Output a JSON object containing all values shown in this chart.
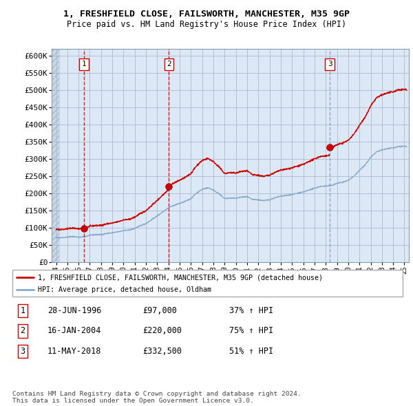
{
  "title1": "1, FRESHFIELD CLOSE, FAILSWORTH, MANCHESTER, M35 9GP",
  "title2": "Price paid vs. HM Land Registry's House Price Index (HPI)",
  "ylabel_ticks": [
    "£0",
    "£50K",
    "£100K",
    "£150K",
    "£200K",
    "£250K",
    "£300K",
    "£350K",
    "£400K",
    "£450K",
    "£500K",
    "£550K",
    "£600K"
  ],
  "ytick_values": [
    0,
    50000,
    100000,
    150000,
    200000,
    250000,
    300000,
    350000,
    400000,
    450000,
    500000,
    550000,
    600000
  ],
  "xlim_start": 1993.6,
  "xlim_end": 2025.4,
  "ylim_min": 0,
  "ylim_max": 620000,
  "sale_dates": [
    1996.49,
    2004.04,
    2018.36
  ],
  "sale_prices": [
    97000,
    220000,
    332500
  ],
  "sale_labels": [
    "1",
    "2",
    "3"
  ],
  "vline_colors": [
    "#cc0000",
    "#cc0000",
    "#8899bb"
  ],
  "vline_styles": [
    "--",
    "--",
    "--"
  ],
  "price_line_color": "#cc0000",
  "hpi_line_color": "#88aacc",
  "plot_bg_color": "#dce8f5",
  "hatch_bg_color": "#c8d8e8",
  "legend_label_price": "1, FRESHFIELD CLOSE, FAILSWORTH, MANCHESTER, M35 9GP (detached house)",
  "legend_label_hpi": "HPI: Average price, detached house, Oldham",
  "table_rows": [
    [
      "1",
      "28-JUN-1996",
      "£97,000",
      "37% ↑ HPI"
    ],
    [
      "2",
      "16-JAN-2004",
      "£220,000",
      "75% ↑ HPI"
    ],
    [
      "3",
      "11-MAY-2018",
      "£332,500",
      "51% ↑ HPI"
    ]
  ],
  "footer_text": "Contains HM Land Registry data © Crown copyright and database right 2024.\nThis data is licensed under the Open Government Licence v3.0.",
  "bg_color": "#ffffff",
  "grid_color": "#aabbcc"
}
